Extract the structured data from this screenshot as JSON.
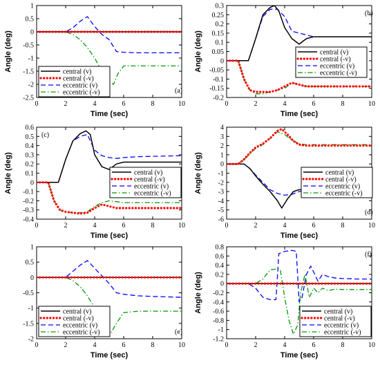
{
  "chart_data": [
    {
      "type": "line",
      "panel_label": "(a)",
      "xlabel": "Time (sec)",
      "ylabel": "Angle (deg)",
      "xlim": [
        0,
        10
      ],
      "ylim": [
        -2.5,
        1
      ],
      "xticks": [
        "0",
        "2",
        "4",
        "6",
        "8",
        "10"
      ],
      "yticks": [
        "-2.5",
        "-2",
        "-1.5",
        "-1",
        "-0.5",
        "0",
        "0.5",
        "1"
      ],
      "legend_position": "bottom-left",
      "grid": false,
      "series": [
        {
          "name": "central (v)",
          "color": "#000000",
          "style": "solid",
          "x": [
            0,
            10
          ],
          "y": [
            0,
            0
          ]
        },
        {
          "name": "central (-v)",
          "color": "#ff0000",
          "style": "dotted",
          "x": [
            0,
            10
          ],
          "y": [
            0,
            0
          ]
        },
        {
          "name": "eccentric (v)",
          "color": "#0000ff",
          "style": "dashed",
          "x": [
            0,
            2,
            2.5,
            3,
            3.5,
            4,
            4.5,
            5,
            5.5,
            6,
            7,
            8,
            10
          ],
          "y": [
            0,
            0,
            0.15,
            0.4,
            0.58,
            0.2,
            -0.1,
            -0.3,
            -0.75,
            -0.78,
            -0.8,
            -0.8,
            -0.8
          ]
        },
        {
          "name": "eccentric (-v)",
          "color": "#009900",
          "style": "dashdot",
          "x": [
            0,
            2,
            2.5,
            3,
            3.5,
            4,
            4.5,
            5,
            5.3,
            5.6,
            6,
            7,
            8,
            10
          ],
          "y": [
            0,
            0,
            -0.1,
            -0.3,
            -0.6,
            -1.0,
            -1.5,
            -1.9,
            -2.0,
            -1.6,
            -1.3,
            -1.3,
            -1.3,
            -1.3
          ]
        }
      ]
    },
    {
      "type": "line",
      "panel_label": "(b)",
      "xlabel": "Time (sec)",
      "ylabel": "Angle (deg)",
      "xlim": [
        0,
        10
      ],
      "ylim": [
        -0.2,
        0.3
      ],
      "xticks": [
        "0",
        "2",
        "4",
        "6",
        "8",
        "10"
      ],
      "yticks": [
        "-0.2",
        "-0.15",
        "-0.1",
        "-0.05",
        "0",
        "0.05",
        "0.1",
        "0.15",
        "0.2",
        "0.25",
        "0.3"
      ],
      "legend_position": "center-right",
      "grid": false,
      "series": [
        {
          "name": "central (v)",
          "color": "#000000",
          "style": "solid",
          "x": [
            0,
            1.5,
            2,
            2.5,
            3,
            3.3,
            3.6,
            4,
            4.5,
            5,
            5.5,
            6,
            7,
            10
          ],
          "y": [
            0,
            0,
            0.12,
            0.25,
            0.29,
            0.3,
            0.27,
            0.18,
            0.12,
            0.09,
            0.12,
            0.13,
            0.13,
            0.13
          ]
        },
        {
          "name": "central (-v)",
          "color": "#ff0000",
          "style": "dotted",
          "x": [
            0,
            0.8,
            1.2,
            1.6,
            2,
            2.5,
            3,
            3.5,
            4,
            4.5,
            5,
            5.5,
            6,
            10
          ],
          "y": [
            0,
            0,
            -0.1,
            -0.16,
            -0.17,
            -0.17,
            -0.17,
            -0.16,
            -0.14,
            -0.12,
            -0.13,
            -0.14,
            -0.14,
            -0.14
          ]
        },
        {
          "name": "eccentric (v)",
          "color": "#0000ff",
          "style": "dashed",
          "x": [
            0,
            1.5,
            2,
            2.5,
            3,
            3.5,
            4,
            4.5,
            5,
            5.5,
            6,
            7,
            10
          ],
          "y": [
            0,
            0,
            0.12,
            0.24,
            0.28,
            0.28,
            0.24,
            0.16,
            0.15,
            0.14,
            0.13,
            0.13,
            0.13
          ]
        },
        {
          "name": "eccentric (-v)",
          "color": "#009900",
          "style": "dashdot",
          "x": [
            0,
            0.8,
            1.2,
            1.6,
            2,
            2.5,
            3,
            3.5,
            4,
            4.5,
            5,
            5.5,
            6,
            10
          ],
          "y": [
            0,
            0,
            -0.1,
            -0.16,
            -0.18,
            -0.18,
            -0.17,
            -0.16,
            -0.15,
            -0.12,
            -0.13,
            -0.14,
            -0.14,
            -0.14
          ]
        }
      ]
    },
    {
      "type": "line",
      "panel_label": "(c)",
      "xlabel": "Time (sec)",
      "ylabel": "Angle (deg)",
      "xlim": [
        0,
        10
      ],
      "ylim": [
        -0.4,
        0.6
      ],
      "xticks": [
        "0",
        "2",
        "4",
        "6",
        "8",
        "10"
      ],
      "yticks": [
        "-0.4",
        "-0.3",
        "-0.2",
        "-0.1",
        "0",
        "0.1",
        "0.2",
        "0.3",
        "0.4",
        "0.5",
        "0.6"
      ],
      "legend_position": "center-right",
      "grid": false,
      "series": [
        {
          "name": "central (v)",
          "color": "#000000",
          "style": "solid",
          "x": [
            0,
            1.5,
            2,
            2.5,
            3,
            3.4,
            3.7,
            4,
            4.5,
            5,
            5.5,
            6,
            7,
            10
          ],
          "y": [
            0,
            0,
            0.25,
            0.45,
            0.53,
            0.56,
            0.52,
            0.3,
            0.17,
            0.14,
            0.2,
            0.22,
            0.22,
            0.22
          ]
        },
        {
          "name": "central (-v)",
          "color": "#ff0000",
          "style": "dotted",
          "x": [
            0,
            0.8,
            1.2,
            1.6,
            2,
            2.5,
            3,
            3.5,
            4,
            4.5,
            5,
            5.5,
            6,
            10
          ],
          "y": [
            0,
            0,
            -0.2,
            -0.3,
            -0.32,
            -0.33,
            -0.34,
            -0.33,
            -0.28,
            -0.24,
            -0.26,
            -0.28,
            -0.28,
            -0.28
          ]
        },
        {
          "name": "eccentric (v)",
          "color": "#0000ff",
          "style": "dashed",
          "x": [
            0,
            1.5,
            2,
            2.5,
            3,
            3.5,
            4,
            4.5,
            5,
            5.5,
            6,
            7,
            10
          ],
          "y": [
            0,
            0,
            0.25,
            0.45,
            0.5,
            0.52,
            0.35,
            0.29,
            0.27,
            0.26,
            0.27,
            0.28,
            0.29
          ]
        },
        {
          "name": "eccentric (-v)",
          "color": "#009900",
          "style": "dashdot",
          "x": [
            0,
            0.8,
            1.2,
            1.6,
            2,
            2.5,
            3,
            3.5,
            4,
            4.5,
            5,
            5.5,
            6,
            10
          ],
          "y": [
            0,
            0,
            -0.2,
            -0.3,
            -0.32,
            -0.33,
            -0.33,
            -0.32,
            -0.26,
            -0.22,
            -0.2,
            -0.21,
            -0.22,
            -0.22
          ]
        }
      ]
    },
    {
      "type": "line",
      "panel_label": "(d)",
      "xlabel": "Time (sec)",
      "ylabel": "Angle (deg)",
      "xlim": [
        0,
        10
      ],
      "ylim": [
        -6,
        4
      ],
      "xticks": [
        "0",
        "2",
        "4",
        "6",
        "8",
        "10"
      ],
      "yticks": [
        "-6",
        "-5",
        "-4",
        "-3",
        "-2",
        "-1",
        "0",
        "1",
        "2",
        "3",
        "4"
      ],
      "legend_position": "center-right",
      "grid": false,
      "series": [
        {
          "name": "central (v)",
          "color": "#000000",
          "style": "solid",
          "x": [
            0,
            1.2,
            1.6,
            2,
            2.5,
            3,
            3.5,
            3.8,
            4.2,
            4.6,
            5,
            5.5,
            6,
            7,
            10
          ],
          "y": [
            0,
            0,
            -0.5,
            -1.3,
            -2.2,
            -3.0,
            -4.0,
            -4.8,
            -3.8,
            -3.0,
            -2.8,
            -2.8,
            -2.9,
            -2.9,
            -2.9
          ]
        },
        {
          "name": "central (-v)",
          "color": "#ff0000",
          "style": "dotted",
          "x": [
            0,
            0.8,
            1.2,
            1.6,
            2,
            2.5,
            3,
            3.5,
            3.8,
            4.2,
            4.6,
            5,
            5.5,
            6,
            10
          ],
          "y": [
            0,
            0,
            0.5,
            1.2,
            1.8,
            2.2,
            2.8,
            3.6,
            3.8,
            3.2,
            2.5,
            2.1,
            2.0,
            2.0,
            2.0
          ]
        },
        {
          "name": "eccentric (v)",
          "color": "#0000ff",
          "style": "dashed",
          "x": [
            0,
            1.2,
            1.6,
            2,
            2.5,
            3,
            3.5,
            4,
            4.5,
            5,
            5.5,
            6,
            7,
            10
          ],
          "y": [
            0,
            0,
            -0.5,
            -1.2,
            -2.0,
            -2.8,
            -3.2,
            -3.4,
            -3.3,
            -3.0,
            -2.9,
            -2.8,
            -2.8,
            -2.8
          ]
        },
        {
          "name": "eccentric (-v)",
          "color": "#009900",
          "style": "dashdot",
          "x": [
            0,
            0.8,
            1.2,
            1.6,
            2,
            2.5,
            3,
            3.5,
            4,
            4.5,
            5,
            5.5,
            6,
            10
          ],
          "y": [
            0,
            0,
            0.5,
            1.1,
            1.7,
            2.1,
            2.8,
            3.5,
            3.2,
            2.6,
            2.2,
            2.1,
            2.1,
            2.1
          ]
        }
      ]
    },
    {
      "type": "line",
      "panel_label": "(e)",
      "xlabel": "Time (sec)",
      "ylabel": "",
      "xlim": [
        0,
        10
      ],
      "ylim": [
        -2,
        1
      ],
      "xticks": [
        "0",
        "2",
        "4",
        "6",
        "8",
        "10"
      ],
      "yticks": [
        "-2",
        "-1.5",
        "-1",
        "-0.5",
        "0",
        "0.5",
        "1"
      ],
      "legend_position": "bottom-left",
      "grid": false,
      "series": [
        {
          "name": "central (v)",
          "color": "#000000",
          "style": "solid",
          "x": [
            0,
            10
          ],
          "y": [
            0,
            0
          ]
        },
        {
          "name": "central (-v)",
          "color": "#ff0000",
          "style": "dotted",
          "x": [
            0,
            10
          ],
          "y": [
            0,
            0
          ]
        },
        {
          "name": "eccentric (v)",
          "color": "#0000ff",
          "style": "dashed",
          "x": [
            0,
            2,
            2.5,
            3,
            3.5,
            4,
            4.5,
            5,
            5.5,
            6,
            7,
            8,
            10
          ],
          "y": [
            0,
            0,
            0.2,
            0.4,
            0.55,
            0.3,
            0.05,
            -0.2,
            -0.5,
            -0.55,
            -0.6,
            -0.62,
            -0.65
          ]
        },
        {
          "name": "eccentric (-v)",
          "color": "#009900",
          "style": "dashdot",
          "x": [
            0,
            2,
            2.5,
            3,
            3.5,
            4,
            4.5,
            5,
            5.5,
            6,
            7,
            8,
            10
          ],
          "y": [
            0,
            0,
            -0.1,
            -0.3,
            -0.6,
            -1.0,
            -1.5,
            -1.9,
            -1.5,
            -1.15,
            -1.1,
            -1.1,
            -1.1
          ]
        }
      ]
    },
    {
      "type": "line",
      "panel_label": "(f)",
      "xlabel": "Time (sec)",
      "ylabel": "Angle (deg)",
      "xlim": [
        0,
        10
      ],
      "ylim": [
        -1.2,
        0.8
      ],
      "xticks": [
        "0",
        "2",
        "4",
        "6",
        "8",
        "10"
      ],
      "yticks": [
        "-1.2",
        "-1",
        "-0.8",
        "-0.6",
        "-0.4",
        "-0.2",
        "0",
        "0.2",
        "0.4",
        "0.6",
        "0.8"
      ],
      "legend_position": "bottom-right",
      "grid": false,
      "series": [
        {
          "name": "central (v)",
          "color": "#000000",
          "style": "solid",
          "x": [
            0,
            10
          ],
          "y": [
            0,
            0
          ]
        },
        {
          "name": "central (-v)",
          "color": "#ff0000",
          "style": "dotted",
          "x": [
            0,
            10
          ],
          "y": [
            0,
            0
          ]
        },
        {
          "name": "eccentric (v)",
          "color": "#0000ff",
          "style": "dashed",
          "x": [
            0,
            1.5,
            2,
            2.5,
            3,
            3.4,
            3.6,
            4,
            4.5,
            4.8,
            5,
            5.2,
            5.5,
            5.8,
            6,
            6.3,
            6.6,
            7,
            7.5,
            8,
            9,
            10
          ],
          "y": [
            0,
            0,
            -0.1,
            -0.3,
            -0.35,
            -0.35,
            0.65,
            0.7,
            0.72,
            0.7,
            -0.4,
            -0.3,
            0.2,
            0.38,
            0.25,
            0.05,
            0.2,
            0.15,
            0.12,
            0.11,
            0.1,
            0.1
          ]
        },
        {
          "name": "eccentric (-v)",
          "color": "#009900",
          "style": "dashdot",
          "x": [
            0,
            2,
            2.5,
            3,
            3.5,
            3.7,
            4,
            4.3,
            4.6,
            4.9,
            5.1,
            5.4,
            5.7,
            6,
            6.3,
            6.6,
            7,
            7.5,
            8,
            9,
            10
          ],
          "y": [
            0,
            0,
            0.1,
            0.3,
            0.32,
            0.3,
            -0.3,
            -0.8,
            -1.1,
            -0.9,
            -0.2,
            0.2,
            -0.3,
            -0.1,
            -0.2,
            -0.1,
            -0.15,
            -0.12,
            -0.13,
            -0.13,
            -0.13
          ]
        }
      ]
    }
  ]
}
